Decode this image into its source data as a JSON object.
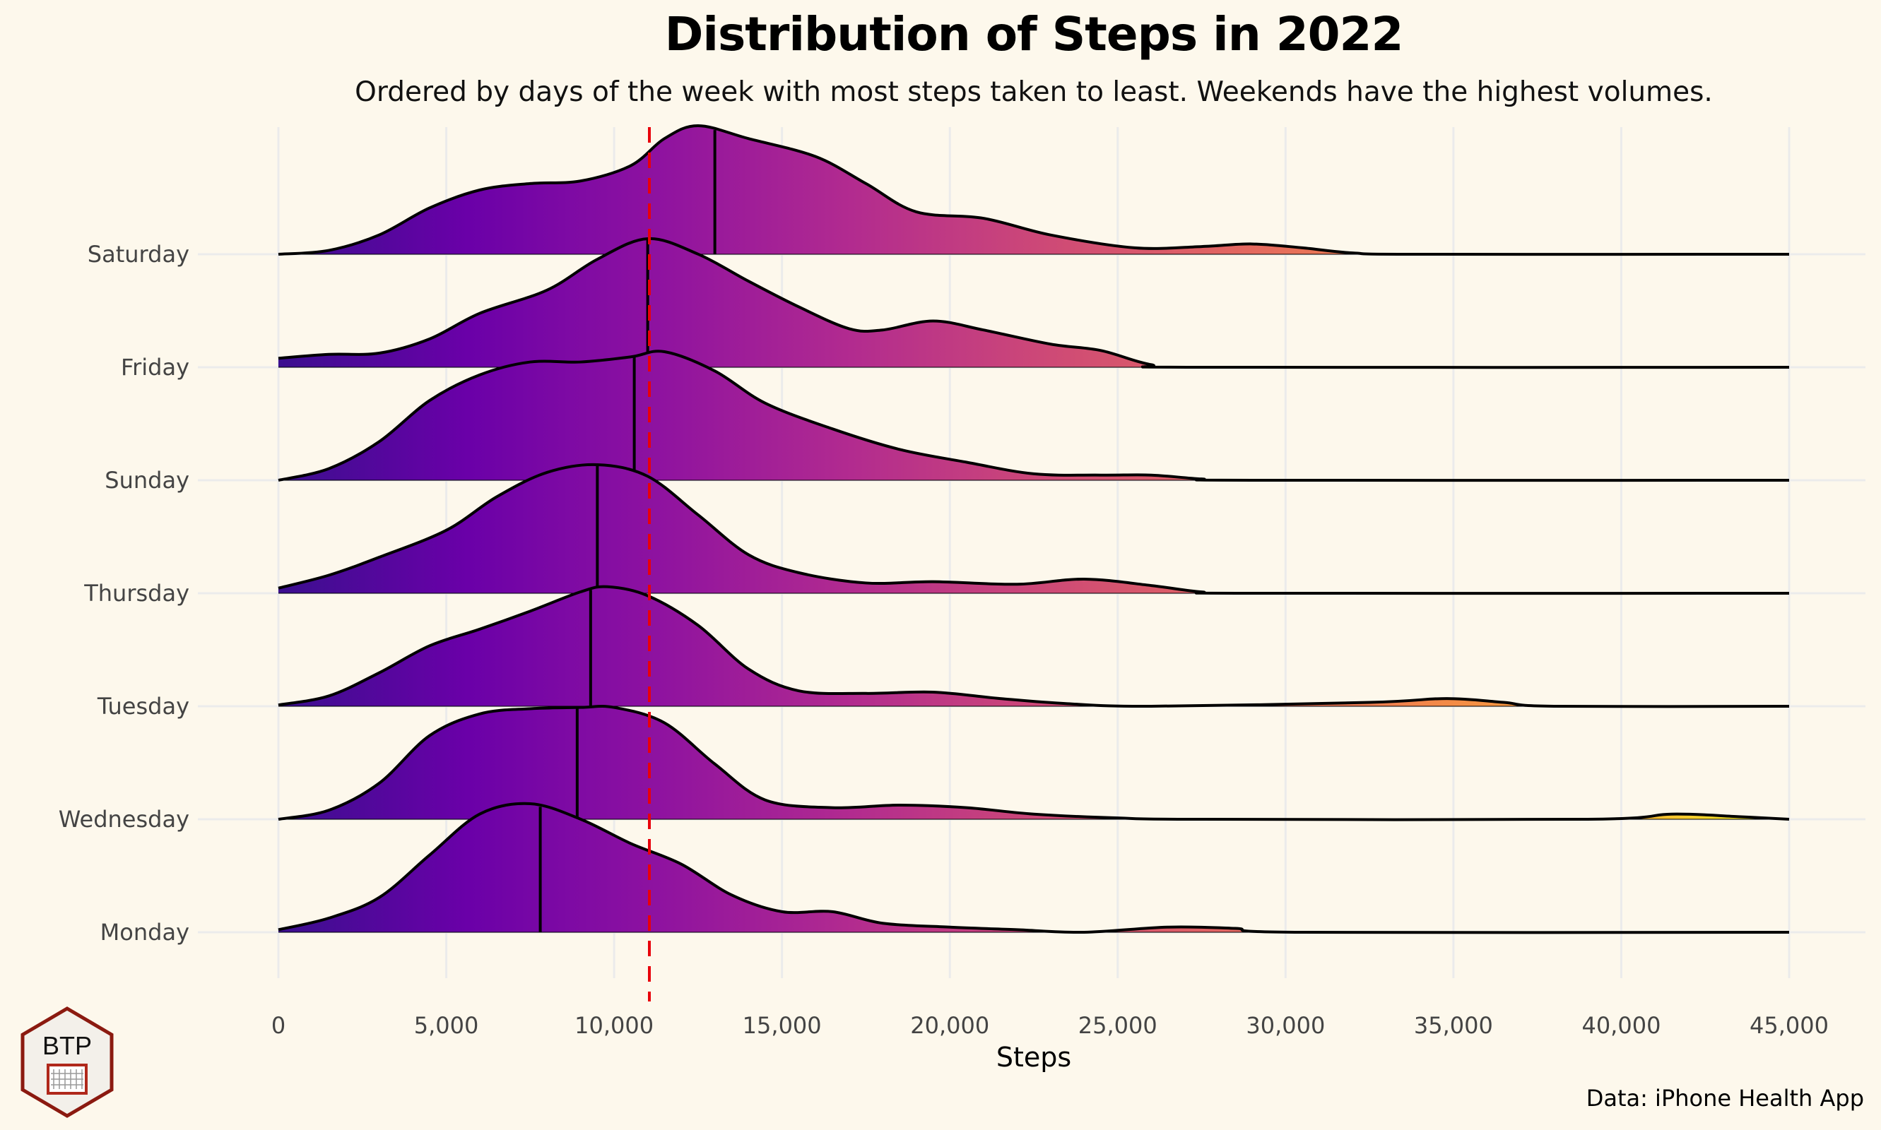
{
  "title": "Distribution of Steps in 2022",
  "subtitle": "Ordered by days of the week with most steps taken to least. Weekends have the highest volumes.",
  "caption": "Data: iPhone Health App",
  "logo": {
    "text": "BTP",
    "icon": "hockey-net-icon"
  },
  "colors": {
    "background": "#fdf8ec",
    "gradient": [
      "#3b0f8f",
      "#6a00a8",
      "#8e12a0",
      "#b12a90",
      "#cc4778",
      "#e16462",
      "#f1844b",
      "#fca636",
      "#f0f921"
    ],
    "reference_line": "#e8000b",
    "grid": "#ebebeb"
  },
  "chart_data": {
    "type": "ridgeline",
    "xlabel": "Steps",
    "ylabel": "",
    "xlim": [
      0,
      45000
    ],
    "x_ticks": [
      0,
      5000,
      10000,
      15000,
      20000,
      25000,
      30000,
      35000,
      40000,
      45000
    ],
    "x_tick_labels": [
      "0",
      "5,000",
      "10,000",
      "15,000",
      "20,000",
      "25,000",
      "30,000",
      "35,000",
      "40,000",
      "45,000"
    ],
    "fill": "gradient by steps (plasma)",
    "grid": true,
    "reference_line": {
      "x": 11050,
      "style": "dashed",
      "color": "red"
    },
    "categories": [
      "Monday",
      "Wednesday",
      "Tuesday",
      "Thursday",
      "Sunday",
      "Friday",
      "Saturday"
    ],
    "series": [
      {
        "name": "Saturday",
        "median": 13000,
        "density": [
          [
            0,
            0
          ],
          [
            1500,
            0.03
          ],
          [
            3000,
            0.15
          ],
          [
            4500,
            0.36
          ],
          [
            6000,
            0.5
          ],
          [
            7500,
            0.55
          ],
          [
            9000,
            0.57
          ],
          [
            10500,
            0.69
          ],
          [
            11500,
            0.9
          ],
          [
            12500,
            1.0
          ],
          [
            14000,
            0.9
          ],
          [
            16000,
            0.76
          ],
          [
            17500,
            0.55
          ],
          [
            19000,
            0.33
          ],
          [
            21000,
            0.28
          ],
          [
            23000,
            0.15
          ],
          [
            25500,
            0.05
          ],
          [
            27500,
            0.06
          ],
          [
            29000,
            0.08
          ],
          [
            30500,
            0.05
          ],
          [
            32000,
            0.01
          ],
          [
            34000,
            0
          ],
          [
            45000,
            0
          ]
        ]
      },
      {
        "name": "Friday",
        "median": 11000,
        "density": [
          [
            0,
            0.07
          ],
          [
            1500,
            0.1
          ],
          [
            3000,
            0.11
          ],
          [
            4500,
            0.22
          ],
          [
            6000,
            0.42
          ],
          [
            8000,
            0.6
          ],
          [
            9500,
            0.84
          ],
          [
            11000,
            1.0
          ],
          [
            12500,
            0.88
          ],
          [
            14000,
            0.67
          ],
          [
            15500,
            0.47
          ],
          [
            17000,
            0.3
          ],
          [
            18000,
            0.29
          ],
          [
            19500,
            0.36
          ],
          [
            21000,
            0.29
          ],
          [
            23000,
            0.18
          ],
          [
            24500,
            0.13
          ],
          [
            26000,
            0.02
          ],
          [
            27500,
            0
          ],
          [
            45000,
            0
          ]
        ]
      },
      {
        "name": "Sunday",
        "median": 10600,
        "density": [
          [
            0,
            0
          ],
          [
            1500,
            0.09
          ],
          [
            3000,
            0.3
          ],
          [
            4500,
            0.62
          ],
          [
            6000,
            0.82
          ],
          [
            7500,
            0.92
          ],
          [
            9000,
            0.92
          ],
          [
            10500,
            0.96
          ],
          [
            11500,
            1.0
          ],
          [
            13000,
            0.85
          ],
          [
            14500,
            0.6
          ],
          [
            16500,
            0.4
          ],
          [
            18500,
            0.24
          ],
          [
            20500,
            0.14
          ],
          [
            22500,
            0.05
          ],
          [
            24500,
            0.04
          ],
          [
            26000,
            0.04
          ],
          [
            27500,
            0.01
          ],
          [
            29000,
            0
          ],
          [
            45000,
            0
          ]
        ]
      },
      {
        "name": "Thursday",
        "median": 9500,
        "density": [
          [
            0,
            0.04
          ],
          [
            1500,
            0.14
          ],
          [
            3000,
            0.28
          ],
          [
            5000,
            0.49
          ],
          [
            6500,
            0.75
          ],
          [
            8000,
            0.94
          ],
          [
            9500,
            1.0
          ],
          [
            11000,
            0.91
          ],
          [
            12500,
            0.61
          ],
          [
            14000,
            0.3
          ],
          [
            15500,
            0.16
          ],
          [
            17500,
            0.08
          ],
          [
            19500,
            0.09
          ],
          [
            22000,
            0.07
          ],
          [
            24000,
            0.11
          ],
          [
            26000,
            0.06
          ],
          [
            27500,
            0.01
          ],
          [
            29000,
            0
          ],
          [
            45000,
            0
          ]
        ]
      },
      {
        "name": "Tuesday",
        "median": 9300,
        "density": [
          [
            0,
            0.01
          ],
          [
            1500,
            0.08
          ],
          [
            3000,
            0.26
          ],
          [
            4500,
            0.47
          ],
          [
            6000,
            0.6
          ],
          [
            7500,
            0.74
          ],
          [
            9000,
            0.89
          ],
          [
            9800,
            0.93
          ],
          [
            11000,
            0.86
          ],
          [
            12500,
            0.63
          ],
          [
            14000,
            0.29
          ],
          [
            15500,
            0.12
          ],
          [
            17500,
            0.1
          ],
          [
            19500,
            0.11
          ],
          [
            21500,
            0.06
          ],
          [
            23500,
            0.02
          ],
          [
            26000,
            0
          ],
          [
            32500,
            0.03
          ],
          [
            34800,
            0.06
          ],
          [
            36500,
            0.03
          ],
          [
            38000,
            0
          ],
          [
            45000,
            0
          ]
        ]
      },
      {
        "name": "Wednesday",
        "median": 8900,
        "density": [
          [
            0,
            0
          ],
          [
            1500,
            0.07
          ],
          [
            3000,
            0.28
          ],
          [
            4500,
            0.65
          ],
          [
            6000,
            0.82
          ],
          [
            7500,
            0.86
          ],
          [
            9000,
            0.87
          ],
          [
            10000,
            0.87
          ],
          [
            11500,
            0.75
          ],
          [
            13000,
            0.43
          ],
          [
            14500,
            0.15
          ],
          [
            16500,
            0.09
          ],
          [
            18500,
            0.11
          ],
          [
            20500,
            0.09
          ],
          [
            22500,
            0.04
          ],
          [
            25000,
            0.01
          ],
          [
            27500,
            0
          ],
          [
            39000,
            0
          ],
          [
            41500,
            0.04
          ],
          [
            43500,
            0.02
          ],
          [
            45000,
            0
          ]
        ]
      },
      {
        "name": "Monday",
        "median": 7800,
        "density": [
          [
            0,
            0.02
          ],
          [
            1500,
            0.11
          ],
          [
            3000,
            0.27
          ],
          [
            4500,
            0.6
          ],
          [
            6000,
            0.92
          ],
          [
            7500,
            1.0
          ],
          [
            9000,
            0.88
          ],
          [
            10500,
            0.69
          ],
          [
            12000,
            0.53
          ],
          [
            13500,
            0.29
          ],
          [
            15000,
            0.16
          ],
          [
            16500,
            0.16
          ],
          [
            18000,
            0.07
          ],
          [
            20000,
            0.04
          ],
          [
            22000,
            0.02
          ],
          [
            24000,
            0
          ],
          [
            26500,
            0.04
          ],
          [
            28500,
            0.03
          ],
          [
            30500,
            0
          ],
          [
            45000,
            0
          ]
        ]
      }
    ]
  }
}
